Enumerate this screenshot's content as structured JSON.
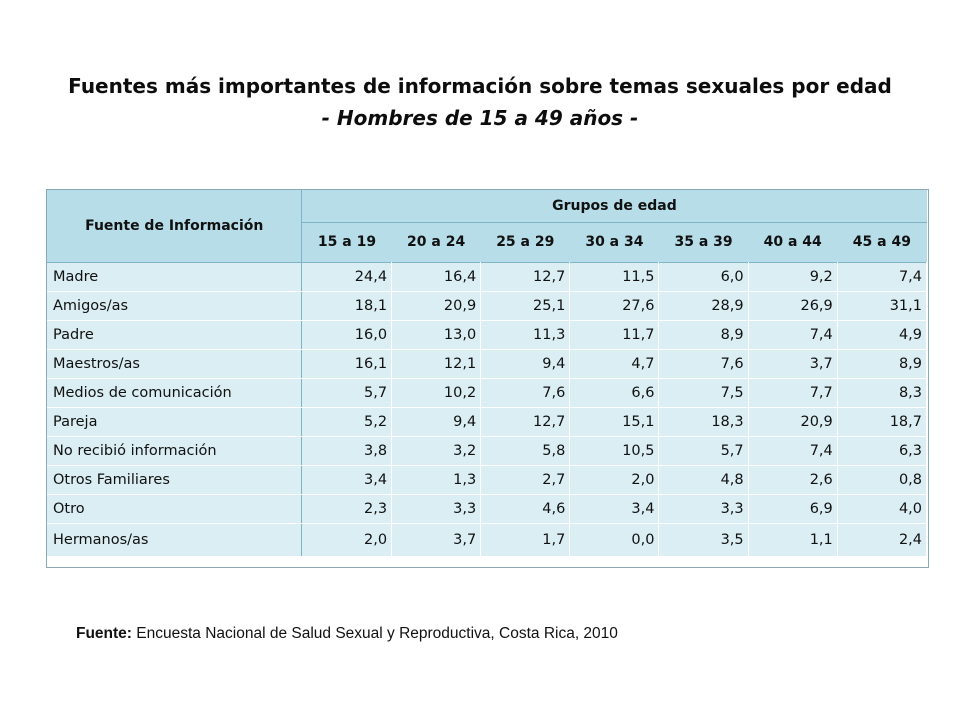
{
  "title": {
    "line1": "Fuentes más importantes de información sobre temas sexuales por edad",
    "line2": "- Hombres de 15 a 49 años -"
  },
  "table": {
    "source_header": "Fuente de Información",
    "group_header": "Grupos de edad",
    "age_groups": [
      "15 a 19",
      "20 a 24",
      "25 a 29",
      "30 a 34",
      "35 a 39",
      "40 a 44",
      "45 a 49"
    ],
    "rows": [
      {
        "name": "Madre",
        "values": [
          "24,4",
          "16,4",
          "12,7",
          "11,5",
          "6,0",
          "9,2",
          "7,4"
        ]
      },
      {
        "name": "Amigos/as",
        "values": [
          "18,1",
          "20,9",
          "25,1",
          "27,6",
          "28,9",
          "26,9",
          "31,1"
        ]
      },
      {
        "name": "Padre",
        "values": [
          "16,0",
          "13,0",
          "11,3",
          "11,7",
          "8,9",
          "7,4",
          "4,9"
        ]
      },
      {
        "name": "Maestros/as",
        "values": [
          "16,1",
          "12,1",
          "9,4",
          "4,7",
          "7,6",
          "3,7",
          "8,9"
        ]
      },
      {
        "name": "Medios de comunicación",
        "values": [
          "5,7",
          "10,2",
          "7,6",
          "6,6",
          "7,5",
          "7,7",
          "8,3"
        ]
      },
      {
        "name": "Pareja",
        "values": [
          "5,2",
          "9,4",
          "12,7",
          "15,1",
          "18,3",
          "20,9",
          "18,7"
        ]
      },
      {
        "name": "No recibió información",
        "values": [
          "3,8",
          "3,2",
          "5,8",
          "10,5",
          "5,7",
          "7,4",
          "6,3"
        ]
      },
      {
        "name": "Otros Familiares",
        "values": [
          "3,4",
          "1,3",
          "2,7",
          "2,0",
          "4,8",
          "2,6",
          "0,8"
        ]
      },
      {
        "name": "Otro",
        "values": [
          "2,3",
          "3,3",
          "4,6",
          "3,4",
          "3,3",
          "6,9",
          "4,0"
        ]
      },
      {
        "name": "Hermanos/as",
        "values": [
          "2,0",
          "3,7",
          "1,7",
          "0,0",
          "3,5",
          "1,1",
          "2,4"
        ]
      }
    ]
  },
  "source": {
    "label": "Fuente:",
    "text": " Encuesta Nacional de Salud Sexual y Reproductiva, Costa Rica, 2010"
  },
  "colors": {
    "header_bg": "#b6dde8",
    "row_bg": "#daeef3"
  }
}
